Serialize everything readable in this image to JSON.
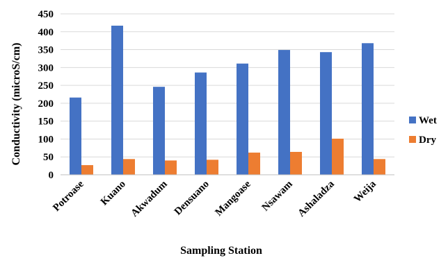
{
  "chart_data": {
    "type": "bar",
    "title": "",
    "xlabel": "Sampling Station",
    "ylabel": "Conductivity (microS/cm)",
    "ylim": [
      0,
      450
    ],
    "yticks": [
      0,
      50,
      100,
      150,
      200,
      250,
      300,
      350,
      400,
      450
    ],
    "grid": true,
    "legend_position": "right",
    "categories": [
      "Potroase",
      "Kuano",
      "Akwadum",
      "Densuano",
      "Mangoase",
      "Nsawam",
      "Ashaladza",
      "Weija"
    ],
    "series": [
      {
        "name": "Wet",
        "color": "#4472c4",
        "values": [
          216,
          417,
          246,
          286,
          311,
          349,
          343,
          368
        ]
      },
      {
        "name": "Dry",
        "color": "#ed7d31",
        "values": [
          27,
          44,
          40,
          42,
          62,
          64,
          101,
          44
        ]
      }
    ]
  }
}
